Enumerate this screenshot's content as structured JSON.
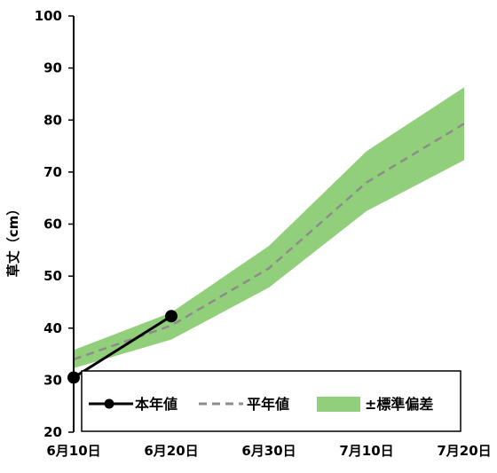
{
  "chart_data": {
    "type": "line",
    "title": "",
    "xlabel": "",
    "ylabel": "草丈（cm）",
    "ylim": [
      20,
      100
    ],
    "y_ticks": [
      "100",
      "90",
      "80",
      "70",
      "60",
      "50",
      "40",
      "30",
      "20"
    ],
    "x_categories": [
      "6月10日",
      "6月20日",
      "6月30日",
      "7月10日",
      "7月20日"
    ],
    "grid": false,
    "legend_position": "bottom-inside",
    "series": [
      {
        "name": "本年値",
        "style": "solid-black-markers",
        "color": "#000000",
        "x": [
          "6月10日",
          "6月20日"
        ],
        "values": [
          30.5,
          42.3
        ]
      },
      {
        "name": "平年値",
        "style": "dashed-gray",
        "color": "#8c8c8c",
        "x": [
          "6月10日",
          "6月20日",
          "6月30日",
          "7月10日",
          "7月20日"
        ],
        "values": [
          34.0,
          40.5,
          51.5,
          68.0,
          79.3
        ]
      },
      {
        "name": "±標準偏差",
        "style": "band",
        "color": "#92cf7a",
        "x": [
          "6月10日",
          "6月20日",
          "6月30日",
          "7月10日",
          "7月20日"
        ],
        "upper": [
          35.8,
          43.0,
          55.8,
          74.0,
          86.3
        ],
        "lower": [
          32.3,
          37.8,
          47.8,
          62.5,
          72.3
        ]
      }
    ]
  }
}
